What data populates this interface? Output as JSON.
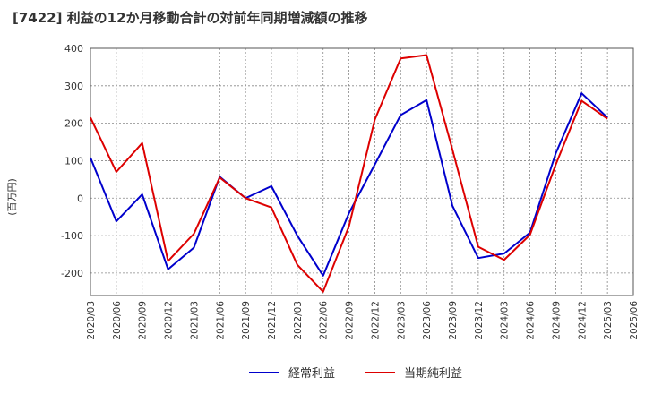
{
  "chart_data": {
    "type": "line",
    "title": "[7422]  利益の12か月移動合計の対前年同期増減額の推移",
    "xlabel": "",
    "ylabel": "(百万円)",
    "ylim": [
      -260,
      400
    ],
    "yticks": [
      -200,
      -100,
      0,
      100,
      200,
      300,
      400
    ],
    "x": [
      "2020/03",
      "2020/06",
      "2020/09",
      "2020/12",
      "2021/03",
      "2021/06",
      "2021/09",
      "2021/12",
      "2022/03",
      "2022/06",
      "2022/09",
      "2022/12",
      "2023/03",
      "2023/06",
      "2023/09",
      "2023/12",
      "2024/03",
      "2024/06",
      "2024/09",
      "2024/12",
      "2025/03",
      "2025/06"
    ],
    "grid": true,
    "legend_position": "bottom-center",
    "series": [
      {
        "name": "経常利益",
        "color": "#0000cc",
        "values": [
          108,
          -62,
          10,
          -190,
          -132,
          57,
          0,
          32,
          -100,
          -207,
          -40,
          90,
          222,
          262,
          -20,
          -160,
          -148,
          -92,
          120,
          280,
          215,
          null
        ]
      },
      {
        "name": "当期純利益",
        "color": "#dd0000",
        "values": [
          215,
          70,
          147,
          -168,
          -95,
          55,
          0,
          -25,
          -178,
          -250,
          -75,
          210,
          373,
          382,
          130,
          -130,
          -165,
          -98,
          90,
          260,
          212,
          null
        ]
      }
    ]
  }
}
